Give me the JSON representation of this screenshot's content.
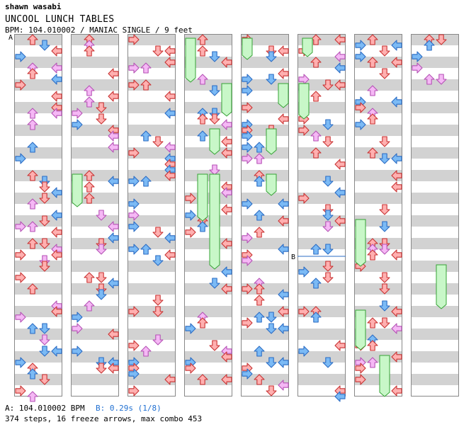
{
  "header": {
    "artist": "shawn wasabi",
    "title": "UNCOOL LUNCH TABLES",
    "info": "BPM: 104.010002 / MANIAC SINGLE / 9 feet"
  },
  "markers": {
    "a_label": "A",
    "b_label": "B"
  },
  "footer": {
    "bpm_a": "A: 104.010002 BPM",
    "bpm_b": "B: 0.29s (1/8)",
    "stats": "374 steps, 16 freeze arrows, max combo 453"
  },
  "colors": {
    "red_note": "#ffb0b0",
    "blue_note": "#7bbaf5",
    "pink_note": "#f5b8f5",
    "green_note": "#8aee8a",
    "freeze_fill": "#c8f7c8",
    "freeze_stroke": "#36a336",
    "stripe": "#d2d2d2",
    "bpm_b_text": "#1f6fd1"
  },
  "chart_data": {
    "type": "step-chart",
    "difficulty": "MANIAC",
    "style": "SINGLE",
    "feet": 9,
    "bpm": 104.010002,
    "columns": 8,
    "measures_per_column": 8,
    "lanes": [
      "left",
      "down",
      "up",
      "right"
    ],
    "step_count": 374,
    "freeze_arrow_count": 16,
    "max_combo": 453
  }
}
